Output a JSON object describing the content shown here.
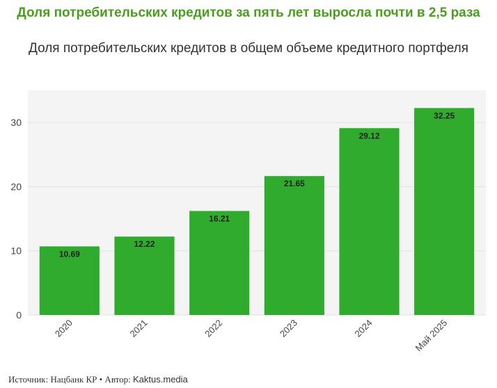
{
  "header": {
    "title": "Доля потребительских кредитов за пять лет выросла почти в 2,5 раза",
    "subtitle": "Доля потребительских кредитов в общем объеме кредитного портфеля"
  },
  "footer": {
    "source": "Источник: Нацбанк КР • Автор: ",
    "brand": "Kaktus.media"
  },
  "colors": {
    "bar": "#31ab2e",
    "plot_background": "#f4f4f4",
    "title": "#4a9e1e"
  },
  "chart_data": {
    "type": "bar",
    "categories": [
      "2020",
      "2021",
      "2022",
      "2023",
      "2024",
      "Май 2025"
    ],
    "values": [
      10.69,
      12.22,
      16.21,
      21.65,
      29.12,
      32.25
    ],
    "ylim": [
      0,
      35
    ],
    "yticks": [
      0,
      10,
      20,
      30
    ],
    "grid": true,
    "xlabel": "",
    "ylabel": ""
  }
}
